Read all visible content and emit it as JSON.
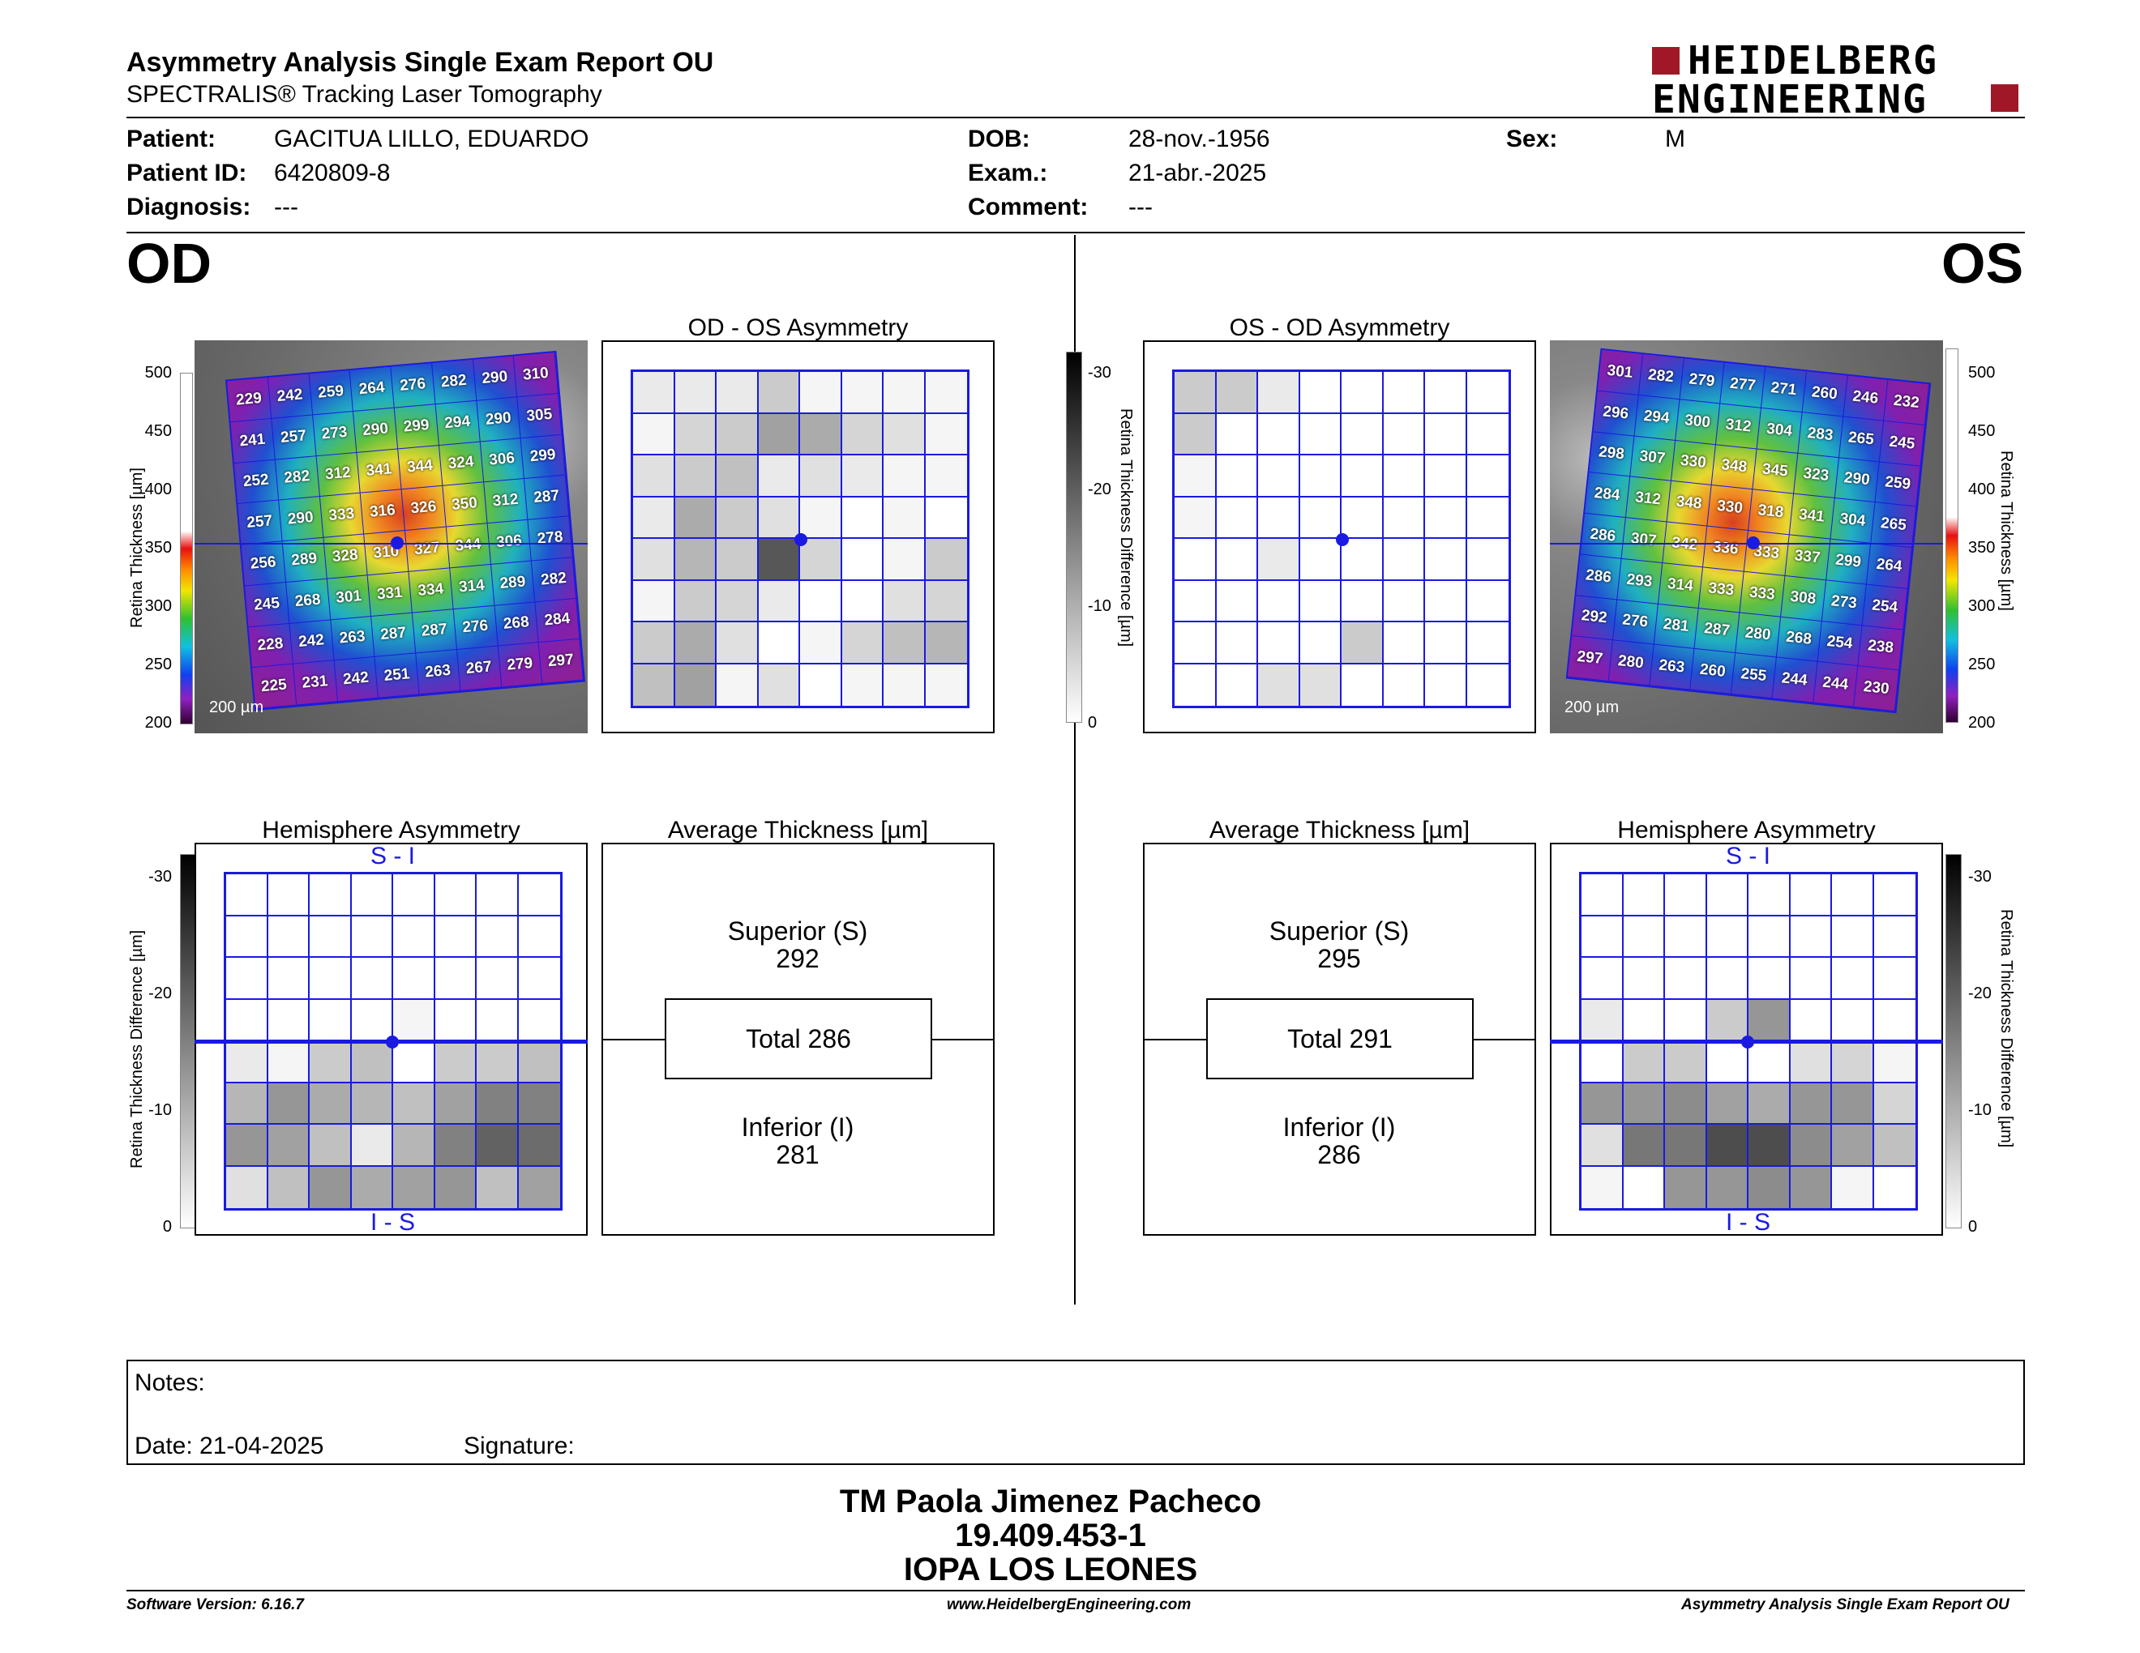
{
  "header": {
    "title": "Asymmetry Analysis Single Exam Report OU",
    "subtitle": "SPECTRALIS® Tracking Laser Tomography",
    "logo_line1": "HEIDELBERG",
    "logo_line2": "ENGINEERING"
  },
  "patient": {
    "patient_label": "Patient:",
    "patient_value": "GACITUA LILLO, EDUARDO",
    "id_label": "Patient ID:",
    "id_value": "6420809-8",
    "diagnosis_label": "Diagnosis:",
    "diagnosis_value": "---",
    "dob_label": "DOB:",
    "dob_value": "28-nov.-1956",
    "exam_label": "Exam.:",
    "exam_value": "21-abr.-2025",
    "comment_label": "Comment:",
    "comment_value": "---",
    "sex_label": "Sex:",
    "sex_value": "M"
  },
  "od": {
    "eye_label": "OD",
    "asym_title": "OD - OS Asymmetry",
    "hemi_title": "Hemisphere Asymmetry",
    "avg_title": "Average Thickness [µm]",
    "superior_label": "Superior (S)",
    "superior_value": "292",
    "total_label": "Total 286",
    "inferior_label": "Inferior (I)",
    "inferior_value": "281",
    "scale_label": "200 µm",
    "thickness_grid": [
      [
        "229",
        "242",
        "259",
        "264",
        "276",
        "282",
        "290",
        "310"
      ],
      [
        "241",
        "257",
        "273",
        "290",
        "299",
        "294",
        "290",
        "305"
      ],
      [
        "252",
        "282",
        "312",
        "341",
        "344",
        "324",
        "306",
        "299"
      ],
      [
        "257",
        "290",
        "333",
        "316",
        "326",
        "350",
        "312",
        "287"
      ],
      [
        "256",
        "289",
        "328",
        "310",
        "327",
        "344",
        "306",
        "278"
      ],
      [
        "245",
        "268",
        "301",
        "331",
        "334",
        "314",
        "289",
        "282"
      ],
      [
        "228",
        "242",
        "263",
        "287",
        "287",
        "276",
        "268",
        "284"
      ],
      [
        "225",
        "231",
        "242",
        "251",
        "263",
        "267",
        "279",
        "297"
      ]
    ],
    "asym_shades": [
      [
        0.1,
        0.1,
        0.1,
        0.25,
        0.05,
        0.05,
        0.05,
        0.05
      ],
      [
        0.05,
        0.2,
        0.25,
        0.45,
        0.4,
        0.2,
        0.15,
        0.05
      ],
      [
        0.15,
        0.25,
        0.3,
        0.1,
        0.15,
        0.1,
        0.05,
        0.05
      ],
      [
        0.1,
        0.4,
        0.25,
        0.15,
        0.05,
        0,
        0.05,
        0
      ],
      [
        0.15,
        0.35,
        0.25,
        0.8,
        0.2,
        0,
        0.05,
        0.25
      ],
      [
        0.05,
        0.25,
        0.2,
        0.1,
        0,
        0,
        0.15,
        0.2
      ],
      [
        0.25,
        0.4,
        0.15,
        0,
        0.05,
        0.2,
        0.3,
        0.35
      ],
      [
        0.3,
        0.45,
        0.05,
        0.15,
        0,
        0.05,
        0.05,
        0.05
      ]
    ],
    "hemi_shades": [
      [
        0,
        0,
        0,
        0,
        0,
        0,
        0,
        0
      ],
      [
        0,
        0,
        0,
        0,
        0,
        0,
        0,
        0
      ],
      [
        0,
        0,
        0,
        0,
        0,
        0,
        0,
        0
      ],
      [
        0,
        0,
        0,
        0,
        0.05,
        0,
        0,
        0
      ],
      [
        0.1,
        0.05,
        0.25,
        0.3,
        0,
        0.25,
        0.25,
        0.3
      ],
      [
        0.35,
        0.5,
        0.4,
        0.35,
        0.3,
        0.45,
        0.6,
        0.6
      ],
      [
        0.5,
        0.45,
        0.3,
        0.1,
        0.35,
        0.6,
        0.75,
        0.7
      ],
      [
        0.15,
        0.3,
        0.5,
        0.4,
        0.45,
        0.5,
        0.3,
        0.45
      ]
    ]
  },
  "os": {
    "eye_label": "OS",
    "asym_title": "OS - OD Asymmetry",
    "hemi_title": "Hemisphere Asymmetry",
    "avg_title": "Average Thickness [µm]",
    "superior_label": "Superior (S)",
    "superior_value": "295",
    "total_label": "Total 291",
    "inferior_label": "Inferior (I)",
    "inferior_value": "286",
    "scale_label": "200 µm",
    "thickness_grid": [
      [
        "301",
        "282",
        "279",
        "277",
        "271",
        "260",
        "246",
        "232"
      ],
      [
        "296",
        "294",
        "300",
        "312",
        "304",
        "283",
        "265",
        "245"
      ],
      [
        "298",
        "307",
        "330",
        "348",
        "345",
        "323",
        "290",
        "259"
      ],
      [
        "284",
        "312",
        "348",
        "330",
        "318",
        "341",
        "304",
        "265"
      ],
      [
        "286",
        "307",
        "342",
        "336",
        "333",
        "337",
        "299",
        "264"
      ],
      [
        "286",
        "293",
        "314",
        "333",
        "333",
        "308",
        "273",
        "254"
      ],
      [
        "292",
        "276",
        "281",
        "287",
        "280",
        "268",
        "254",
        "238"
      ],
      [
        "297",
        "280",
        "263",
        "260",
        "255",
        "244",
        "244",
        "230"
      ]
    ],
    "asym_shades": [
      [
        0.25,
        0.25,
        0.1,
        0,
        0,
        0,
        0,
        0
      ],
      [
        0.25,
        0,
        0,
        0,
        0,
        0,
        0,
        0
      ],
      [
        0.05,
        0,
        0,
        0,
        0,
        0,
        0,
        0
      ],
      [
        0.05,
        0,
        0,
        0,
        0,
        0,
        0,
        0
      ],
      [
        0,
        0,
        0.1,
        0,
        0,
        0,
        0,
        0
      ],
      [
        0,
        0,
        0,
        0,
        0,
        0,
        0,
        0
      ],
      [
        0,
        0,
        0,
        0,
        0.25,
        0,
        0,
        0
      ],
      [
        0,
        0,
        0.15,
        0.15,
        0,
        0,
        0,
        0
      ]
    ],
    "hemi_shades": [
      [
        0,
        0,
        0,
        0,
        0,
        0,
        0,
        0
      ],
      [
        0,
        0,
        0,
        0,
        0,
        0,
        0,
        0
      ],
      [
        0,
        0,
        0,
        0,
        0,
        0,
        0,
        0
      ],
      [
        0.1,
        0,
        0,
        0.25,
        0.5,
        0,
        0,
        0
      ],
      [
        0,
        0.25,
        0.25,
        0,
        0,
        0.15,
        0.2,
        0.05
      ],
      [
        0.5,
        0.5,
        0.55,
        0.45,
        0.4,
        0.5,
        0.5,
        0.2
      ],
      [
        0.15,
        0.65,
        0.65,
        0.85,
        0.85,
        0.55,
        0.45,
        0.3
      ],
      [
        0.05,
        0,
        0.5,
        0.5,
        0.55,
        0.5,
        0.05,
        0
      ]
    ]
  },
  "axes": {
    "thickness_label": "Retina  Thickness [µm]",
    "thickness_ticks": [
      "500",
      "450",
      "400",
      "350",
      "300",
      "250",
      "200"
    ],
    "diff_label": "Retina Thickness Difference [µm]",
    "diff_ticks": [
      "-30",
      "-20",
      "-10",
      "0"
    ],
    "hemi_top": "S - I",
    "hemi_bottom": "I - S"
  },
  "notes": {
    "notes_label": "Notes:",
    "date_label": "Date: 21-04-2025",
    "signature_label": "Signature:"
  },
  "signer": {
    "name": "TM Paola Jimenez Pacheco",
    "id": "19.409.453-1",
    "org": "IOPA LOS LEONES"
  },
  "footer": {
    "software": "Software Version: 6.16.7",
    "website": "www.HeidelbergEngineering.com",
    "report": "Asymmetry Analysis Single Exam Report OU"
  }
}
